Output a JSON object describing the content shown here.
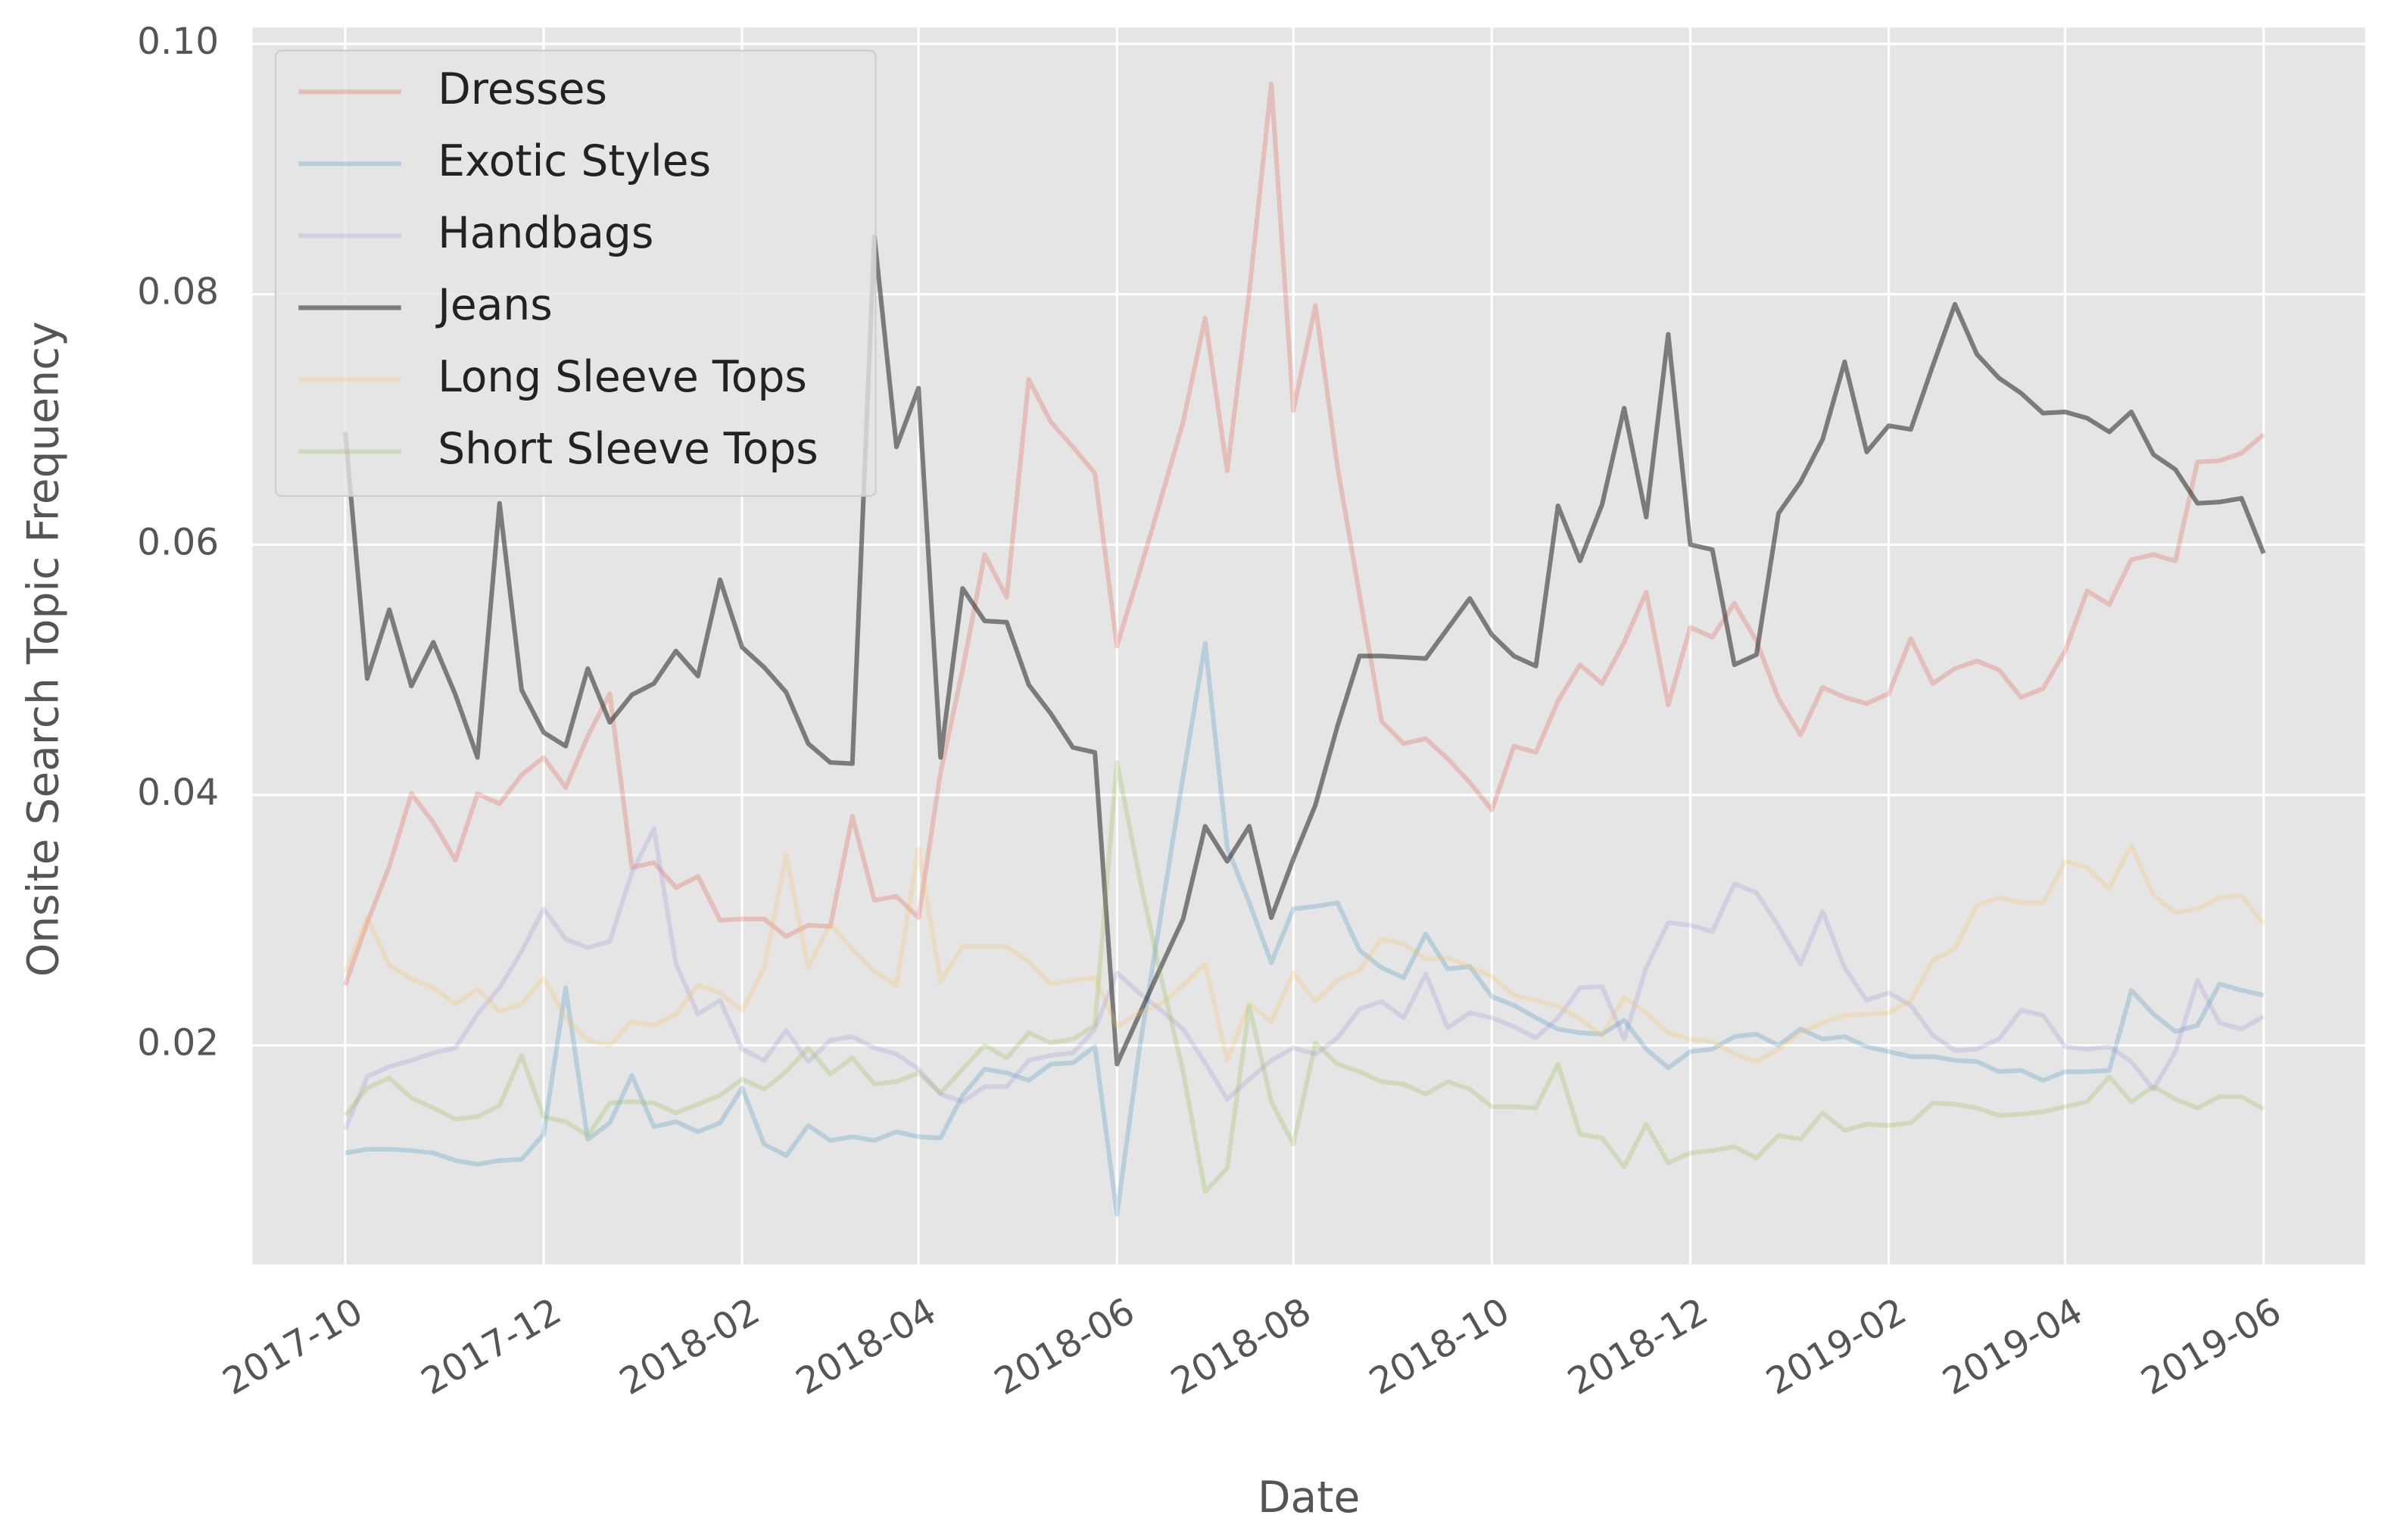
{
  "chart_data": {
    "type": "line",
    "x_label": "Date",
    "y_label": "Onsite Search Topic Frequency",
    "categories": [
      "2017-10",
      null,
      null,
      null,
      null,
      null,
      null,
      null,
      null,
      "2017-12",
      null,
      null,
      null,
      null,
      null,
      null,
      null,
      null,
      "2018-02",
      null,
      null,
      null,
      null,
      null,
      null,
      null,
      "2018-04",
      null,
      null,
      null,
      null,
      null,
      null,
      null,
      null,
      "2018-06",
      null,
      null,
      null,
      null,
      null,
      null,
      null,
      "2018-08",
      null,
      null,
      null,
      null,
      null,
      null,
      null,
      null,
      "2018-10",
      null,
      null,
      null,
      null,
      null,
      null,
      null,
      null,
      "2018-12",
      null,
      null,
      null,
      null,
      null,
      null,
      null,
      null,
      "2019-02",
      null,
      null,
      null,
      null,
      null,
      null,
      null,
      "2019-04",
      null,
      null,
      null,
      null,
      null,
      null,
      null,
      null,
      "2019-06"
    ],
    "series": [
      {
        "name": "Dresses",
        "color": "#e24a33",
        "alpha": 0.25,
        "values": [
          0.0248,
          0.0298,
          0.0343,
          0.0401,
          0.0378,
          0.0348,
          0.0401,
          0.0393,
          0.0416,
          0.043,
          0.0406,
          0.0447,
          0.0481,
          0.0342,
          0.0346,
          0.0326,
          0.0335,
          0.03,
          0.0301,
          0.0301,
          0.0287,
          0.0296,
          0.0295,
          0.0383,
          0.0316,
          0.0319,
          0.0302,
          0.0418,
          0.05,
          0.0592,
          0.0558,
          0.0732,
          0.0698,
          0.0678,
          0.0657,
          0.0519,
          0.0577,
          0.0637,
          0.0698,
          0.0781,
          0.0659,
          0.0802,
          0.0968,
          0.0707,
          0.0791,
          0.0662,
          0.056,
          0.0459,
          0.0441,
          0.0445,
          0.0429,
          0.041,
          0.0388,
          0.0439,
          0.0434,
          0.0475,
          0.0504,
          0.0489,
          0.0522,
          0.0562,
          0.0472,
          0.0534,
          0.0526,
          0.0553,
          0.0523,
          0.0477,
          0.0448,
          0.0486,
          0.0478,
          0.0473,
          0.0481,
          0.0525,
          0.0489,
          0.0501,
          0.0507,
          0.05,
          0.0478,
          0.0485,
          0.0515,
          0.0563,
          0.0552,
          0.0588,
          0.0592,
          0.0587,
          0.0666,
          0.0667,
          0.0673,
          0.0688
        ]
      },
      {
        "name": "Exotic Styles",
        "color": "#348abd",
        "alpha": 0.25,
        "values": [
          0.0114,
          0.0117,
          0.0117,
          0.0116,
          0.0114,
          0.0108,
          0.0105,
          0.0108,
          0.0109,
          0.0129,
          0.0246,
          0.0125,
          0.0138,
          0.0176,
          0.0135,
          0.0139,
          0.0131,
          0.0138,
          0.0166,
          0.0121,
          0.0112,
          0.0136,
          0.0124,
          0.0127,
          0.0124,
          0.0131,
          0.0127,
          0.0126,
          0.016,
          0.0181,
          0.0178,
          0.0172,
          0.0185,
          0.0186,
          0.0199,
          0.0065,
          0.0195,
          0.0305,
          0.0415,
          0.0521,
          0.0358,
          0.0314,
          0.0266,
          0.0309,
          0.0311,
          0.0314,
          0.0276,
          0.0262,
          0.0254,
          0.0289,
          0.0261,
          0.0263,
          0.0239,
          0.0232,
          0.0222,
          0.0213,
          0.021,
          0.0209,
          0.022,
          0.0197,
          0.0182,
          0.0195,
          0.0197,
          0.0207,
          0.0209,
          0.02,
          0.0213,
          0.0205,
          0.0207,
          0.0199,
          0.0195,
          0.0191,
          0.0191,
          0.0188,
          0.0187,
          0.0179,
          0.018,
          0.0172,
          0.0179,
          0.0179,
          0.018,
          0.0244,
          0.0225,
          0.0211,
          0.0216,
          0.0249,
          0.0244,
          0.024
        ]
      },
      {
        "name": "Handbags",
        "color": "#988ed5",
        "alpha": 0.25,
        "values": [
          0.0133,
          0.0175,
          0.0183,
          0.0188,
          0.0194,
          0.0198,
          0.0225,
          0.0246,
          0.0275,
          0.0309,
          0.0285,
          0.0278,
          0.0283,
          0.0338,
          0.0373,
          0.0265,
          0.0225,
          0.0236,
          0.0197,
          0.0188,
          0.0212,
          0.0187,
          0.0204,
          0.0207,
          0.0198,
          0.0193,
          0.0181,
          0.0161,
          0.0155,
          0.0167,
          0.0167,
          0.0188,
          0.0192,
          0.0194,
          0.0213,
          0.0258,
          0.0242,
          0.0228,
          0.0213,
          0.0186,
          0.0157,
          0.0173,
          0.0188,
          0.0198,
          0.0193,
          0.0206,
          0.0229,
          0.0235,
          0.0222,
          0.0257,
          0.0214,
          0.0226,
          0.0222,
          0.0215,
          0.0206,
          0.0222,
          0.0246,
          0.0247,
          0.0205,
          0.0262,
          0.0298,
          0.0296,
          0.0291,
          0.0329,
          0.0322,
          0.0295,
          0.0265,
          0.0307,
          0.0262,
          0.0236,
          0.0242,
          0.0232,
          0.0208,
          0.0196,
          0.0197,
          0.0205,
          0.0228,
          0.0224,
          0.0199,
          0.0197,
          0.0199,
          0.0187,
          0.0165,
          0.0195,
          0.0252,
          0.0218,
          0.0213,
          0.0223
        ]
      },
      {
        "name": "Jeans",
        "color": "#333333",
        "alpha": 0.6,
        "values": [
          0.069,
          0.0493,
          0.0548,
          0.0487,
          0.0522,
          0.048,
          0.043,
          0.0633,
          0.0484,
          0.045,
          0.0439,
          0.0501,
          0.0458,
          0.048,
          0.0489,
          0.0515,
          0.0495,
          0.0572,
          0.0518,
          0.0502,
          0.0482,
          0.0441,
          0.0426,
          0.0425,
          0.0846,
          0.0678,
          0.0725,
          0.043,
          0.0565,
          0.0539,
          0.0538,
          0.0488,
          0.0465,
          0.0438,
          0.0434,
          0.0185,
          0.0224,
          0.0263,
          0.0301,
          0.0375,
          0.0347,
          0.0375,
          0.0302,
          0.0349,
          0.0392,
          0.0455,
          0.0511,
          0.0511,
          0.051,
          0.0509,
          0.0533,
          0.0557,
          0.0528,
          0.0511,
          0.0503,
          0.0631,
          0.0587,
          0.0632,
          0.0709,
          0.0622,
          0.0768,
          0.06,
          0.0596,
          0.0504,
          0.0512,
          0.0625,
          0.065,
          0.0684,
          0.0746,
          0.0674,
          0.0695,
          0.0692,
          0.0743,
          0.0792,
          0.0752,
          0.0733,
          0.0721,
          0.0705,
          0.0706,
          0.0701,
          0.069,
          0.0706,
          0.0672,
          0.066,
          0.0633,
          0.0634,
          0.0637,
          0.0593
        ]
      },
      {
        "name": "Long Sleeve Tops",
        "color": "#fbc15e",
        "alpha": 0.25,
        "values": [
          0.0258,
          0.0302,
          0.0264,
          0.0253,
          0.0246,
          0.0233,
          0.0245,
          0.0227,
          0.0233,
          0.0254,
          0.0222,
          0.0204,
          0.02,
          0.0219,
          0.0216,
          0.0225,
          0.0248,
          0.0242,
          0.0228,
          0.0262,
          0.0352,
          0.0262,
          0.0297,
          0.0277,
          0.0259,
          0.0248,
          0.0357,
          0.0251,
          0.0279,
          0.0279,
          0.0279,
          0.0267,
          0.0249,
          0.0252,
          0.0254,
          0.0215,
          0.0226,
          0.0233,
          0.0248,
          0.0265,
          0.0188,
          0.0233,
          0.0219,
          0.0258,
          0.0235,
          0.0252,
          0.026,
          0.0285,
          0.0281,
          0.0269,
          0.027,
          0.0263,
          0.0255,
          0.024,
          0.0236,
          0.0231,
          0.0221,
          0.0208,
          0.0238,
          0.0226,
          0.021,
          0.0205,
          0.0203,
          0.0193,
          0.0187,
          0.0197,
          0.021,
          0.0218,
          0.0224,
          0.0225,
          0.0226,
          0.0236,
          0.0268,
          0.0277,
          0.0312,
          0.0318,
          0.0314,
          0.0314,
          0.0347,
          0.0342,
          0.0325,
          0.036,
          0.032,
          0.0306,
          0.0309,
          0.0318,
          0.032,
          0.0297
        ]
      },
      {
        "name": "Short Sleeve Tops",
        "color": "#8eba42",
        "alpha": 0.25,
        "values": [
          0.0144,
          0.0166,
          0.0174,
          0.0158,
          0.015,
          0.0141,
          0.0143,
          0.0152,
          0.0192,
          0.0143,
          0.0139,
          0.0128,
          0.0154,
          0.0155,
          0.0154,
          0.0146,
          0.0153,
          0.016,
          0.0173,
          0.0165,
          0.0179,
          0.0198,
          0.0177,
          0.019,
          0.0169,
          0.0171,
          0.0178,
          0.0162,
          0.0181,
          0.02,
          0.019,
          0.021,
          0.0202,
          0.0205,
          0.0216,
          0.0426,
          0.0336,
          0.0254,
          0.0179,
          0.0083,
          0.0102,
          0.0231,
          0.0155,
          0.0121,
          0.0202,
          0.0185,
          0.0179,
          0.0171,
          0.0169,
          0.0161,
          0.0171,
          0.0165,
          0.0151,
          0.0151,
          0.015,
          0.0185,
          0.0129,
          0.0126,
          0.0103,
          0.0137,
          0.0106,
          0.0114,
          0.0116,
          0.0119,
          0.011,
          0.0128,
          0.0125,
          0.0146,
          0.0132,
          0.0137,
          0.0136,
          0.0138,
          0.0154,
          0.0153,
          0.015,
          0.0144,
          0.0145,
          0.0147,
          0.0151,
          0.0155,
          0.0175,
          0.0155,
          0.0167,
          0.0157,
          0.015,
          0.0159,
          0.0159,
          0.0149
        ]
      }
    ],
    "ylim": [
      0.0025,
      0.1013
    ],
    "yticks": [
      0.02,
      0.04,
      0.06,
      0.08,
      {
        "value": 0.1,
        "label": "0.10"
      }
    ],
    "grid": true,
    "legend": "upper left"
  }
}
